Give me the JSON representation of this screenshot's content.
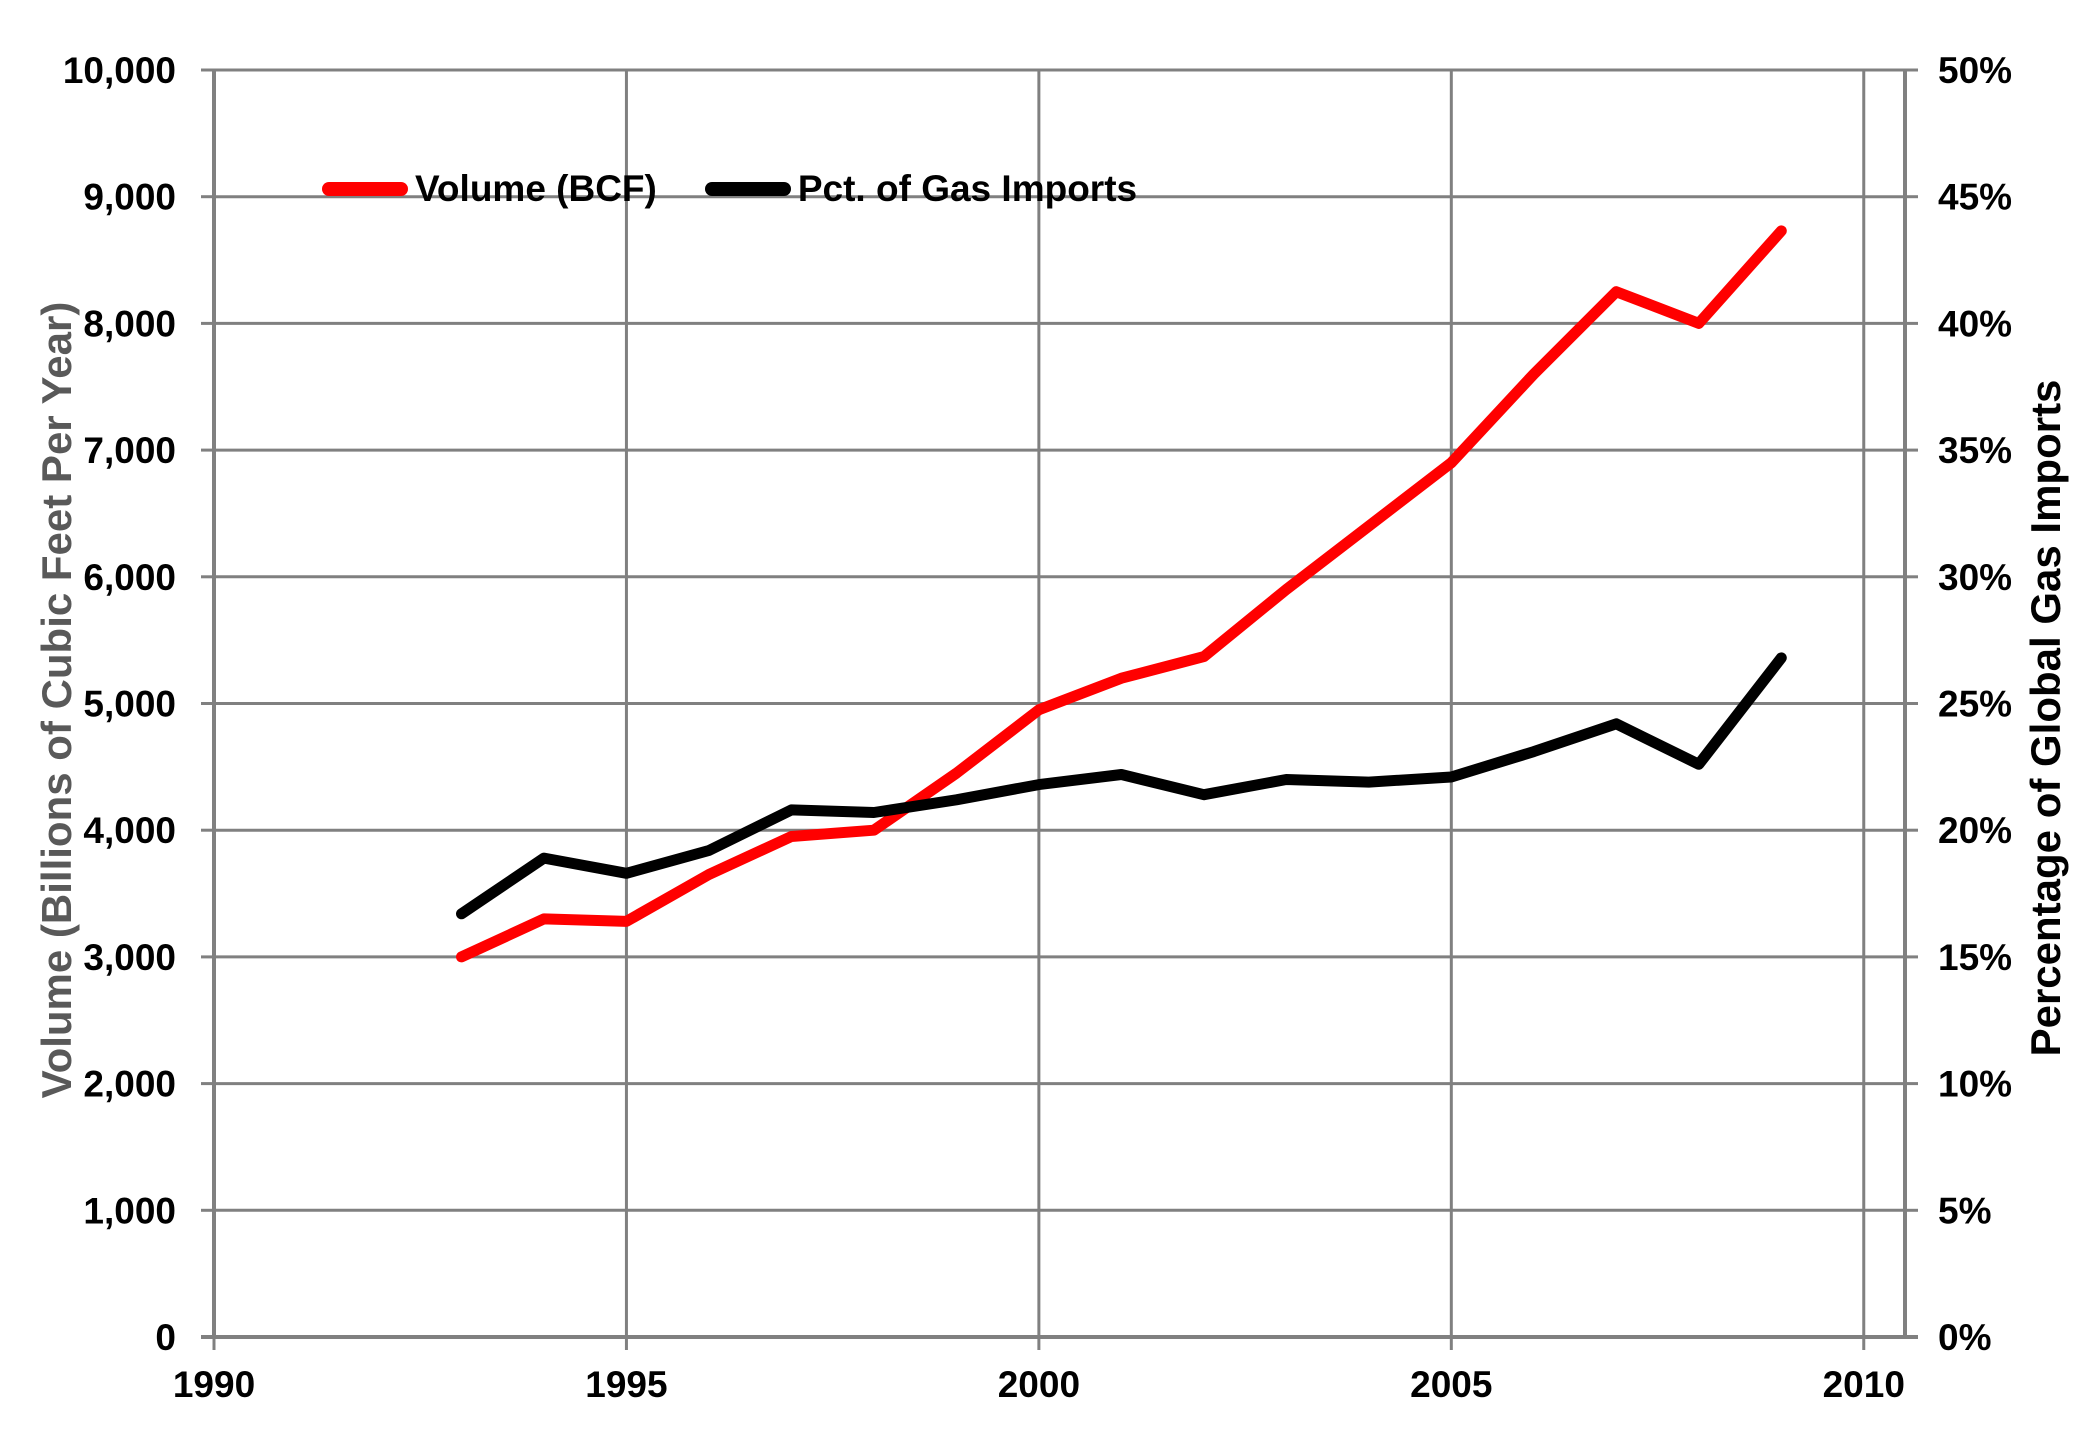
{
  "chart_data": {
    "type": "line",
    "title": "",
    "x": [
      1993,
      1994,
      1995,
      1996,
      1997,
      1998,
      1999,
      2000,
      2001,
      2002,
      2003,
      2004,
      2005,
      2006,
      2007,
      2008,
      2009
    ],
    "series": [
      {
        "name": "Volume (BCF)",
        "axis": "left",
        "color": "#ff0000",
        "values": [
          3000,
          3300,
          3280,
          3650,
          3950,
          4000,
          4450,
          4950,
          5200,
          5370,
          5900,
          6400,
          6900,
          7600,
          8250,
          8000,
          8730
        ]
      },
      {
        "name": "Pct. of Gas Imports",
        "axis": "right",
        "color": "#000000",
        "values": [
          16.7,
          18.9,
          18.3,
          19.2,
          20.8,
          20.7,
          21.2,
          21.8,
          22.2,
          21.4,
          22.0,
          21.9,
          22.1,
          23.1,
          24.2,
          22.6,
          26.8
        ]
      }
    ],
    "left_axis": {
      "label": "Volume (Billions of Cubic Feet Per Year)",
      "min": 0,
      "max": 10000,
      "step": 1000,
      "tick_labels": [
        "0",
        "1,000",
        "2,000",
        "3,000",
        "4,000",
        "5,000",
        "6,000",
        "7,000",
        "8,000",
        "9,000",
        "10,000"
      ]
    },
    "right_axis": {
      "label": "Percentage of Global Gas Imports",
      "min": 0,
      "max": 50,
      "step": 5,
      "tick_labels": [
        "0%",
        "5%",
        "10%",
        "15%",
        "20%",
        "25%",
        "30%",
        "35%",
        "40%",
        "45%",
        "50%"
      ]
    },
    "x_axis": {
      "min": 1990,
      "max": 2010.5,
      "ticks": [
        1990,
        1995,
        2000,
        2005,
        2010
      ],
      "tick_labels": [
        "1990",
        "1995",
        "2000",
        "2005",
        "2010"
      ]
    },
    "grid": true,
    "legend_position": "top-left-inside",
    "colors": {
      "gridline": "#808080",
      "axis_line": "#808080",
      "tick_text": "#000000",
      "left_title": "#595959",
      "right_title": "#000000"
    }
  }
}
